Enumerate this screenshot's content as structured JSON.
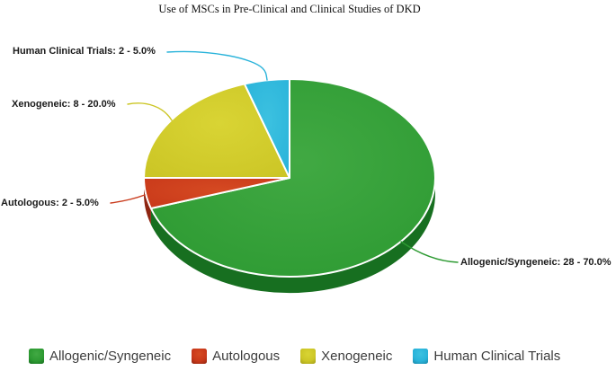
{
  "chart_data": {
    "type": "pie",
    "title": "Use of MSCs in Pre-Clinical and Clinical Studies of DKD",
    "start_angle_deg": 0,
    "direction": "clockwise",
    "legend_position": "bottom",
    "style": "3d",
    "slices": [
      {
        "label": "Allogenic/Syngeneic",
        "count": 28,
        "percent": 70.0,
        "callout": "Allogenic/Syngeneic: 28 - 70.0%",
        "color": "#2d9a32",
        "color_light": "#41a943",
        "color_dark": "#176f20"
      },
      {
        "label": "Autologous",
        "count": 2,
        "percent": 5.0,
        "callout": "Autologous: 2 - 5.0%",
        "color": "#c9391a",
        "color_light": "#d54a22",
        "color_dark": "#8e2511"
      },
      {
        "label": "Xenogeneic",
        "count": 8,
        "percent": 20.0,
        "callout": "Xenogeneic: 8 - 20.0%",
        "color": "#ccc626",
        "color_light": "#d9d434",
        "color_dark": "#a39e1a"
      },
      {
        "label": "Human Clinical Trials",
        "count": 2,
        "percent": 5.0,
        "callout": "Human Clinical Trials: 2 - 5.0%",
        "color": "#29b3da",
        "color_light": "#3cc1e0",
        "color_dark": "#1b87a6"
      }
    ]
  }
}
